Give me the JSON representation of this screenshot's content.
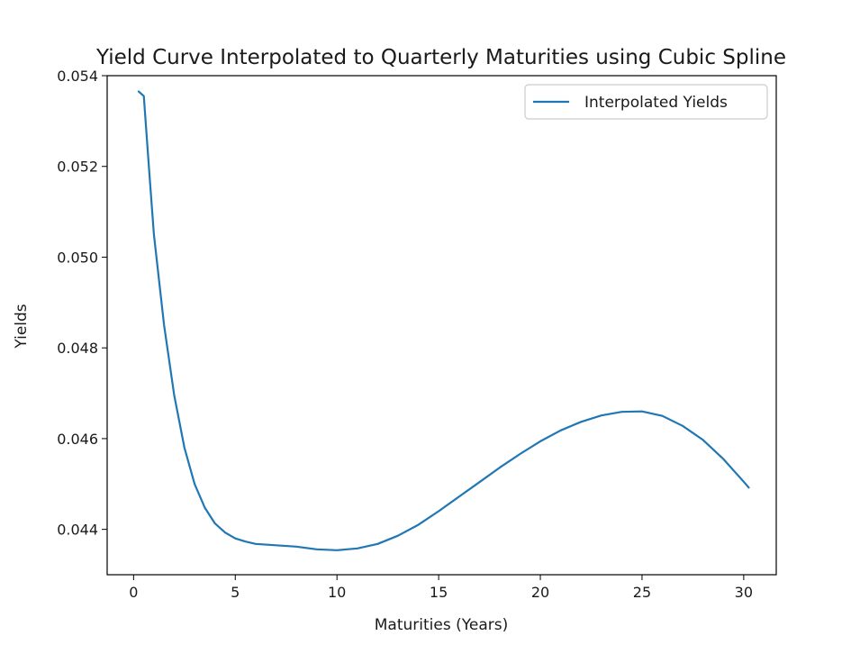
{
  "chart_data": {
    "type": "line",
    "title": "Yield Curve Interpolated to Quarterly Maturities using Cubic Spline",
    "xlabel": "Maturities (Years)",
    "ylabel": "Yields",
    "xlim": [
      -1.3,
      31.6
    ],
    "ylim": [
      0.043,
      0.054
    ],
    "xticks": [
      0,
      5,
      10,
      15,
      20,
      25,
      30
    ],
    "xtick_labels": [
      "0",
      "5",
      "10",
      "15",
      "20",
      "25",
      "30"
    ],
    "yticks": [
      0.044,
      0.046,
      0.048,
      0.05,
      0.052,
      0.054
    ],
    "ytick_labels": [
      "0.044",
      "0.046",
      "0.048",
      "0.050",
      "0.052",
      "0.054"
    ],
    "grid": false,
    "legend_position": "top-right",
    "series": [
      {
        "name": "Interpolated Yields",
        "color": "#1f77b4",
        "x": [
          0.25,
          0.5,
          0.75,
          1.0,
          1.5,
          2.0,
          2.5,
          3.0,
          3.5,
          4.0,
          4.5,
          5.0,
          5.5,
          6.0,
          7.0,
          8.0,
          9.0,
          10.0,
          11.0,
          12.0,
          13.0,
          14.0,
          15.0,
          16.0,
          17.0,
          18.0,
          19.0,
          20.0,
          21.0,
          22.0,
          23.0,
          24.0,
          25.0,
          26.0,
          27.0,
          28.0,
          29.0,
          30.0,
          30.25
        ],
        "y": [
          0.05365,
          0.05355,
          0.052,
          0.0505,
          0.0485,
          0.04695,
          0.0458,
          0.045,
          0.04448,
          0.04413,
          0.04393,
          0.0438,
          0.04373,
          0.04368,
          0.04365,
          0.04362,
          0.04356,
          0.04354,
          0.04358,
          0.04368,
          0.04386,
          0.0441,
          0.0444,
          0.04472,
          0.04504,
          0.04536,
          0.04566,
          0.04594,
          0.04618,
          0.04637,
          0.04651,
          0.04659,
          0.0466,
          0.0465,
          0.04628,
          0.04597,
          0.04555,
          0.04505,
          0.04492
        ]
      }
    ]
  }
}
